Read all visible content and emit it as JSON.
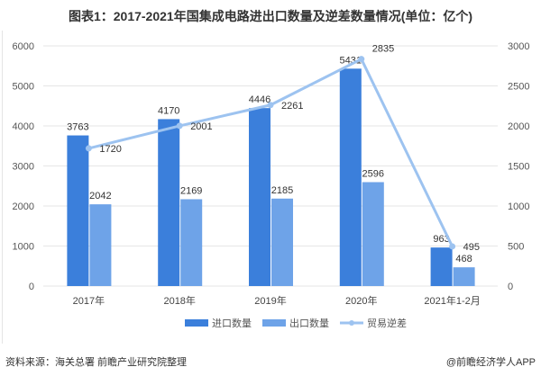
{
  "title": "图表1：2017-2021年国集成电路进出口数量及逆差数量情况(单位：亿个)",
  "source": "资料来源：海关总署 前瞻产业研究院整理",
  "credit": "@前瞻经济学人APP",
  "chart_data": {
    "type": "bar",
    "title": "图表1：2017-2021年国集成电路进出口数量及逆差数量情况(单位：亿个)",
    "categories": [
      "2017年",
      "2018年",
      "2019年",
      "2020年",
      "2021年1-2月"
    ],
    "series": [
      {
        "name": "进口数量",
        "type": "bar",
        "axis": "left",
        "color": "#3b7fdb",
        "values": [
          3763,
          4170,
          4446,
          5431,
          963
        ]
      },
      {
        "name": "出口数量",
        "type": "bar",
        "axis": "left",
        "color": "#6ea3e8",
        "values": [
          2042,
          2169,
          2185,
          2596,
          468
        ]
      },
      {
        "name": "贸易逆差",
        "type": "line",
        "axis": "right",
        "color": "#9dc3f0",
        "values": [
          1720,
          2001,
          2261,
          2835,
          495
        ]
      }
    ],
    "ylim_left": [
      0,
      6000
    ],
    "yticks_left": [
      0,
      1000,
      2000,
      3000,
      4000,
      5000,
      6000
    ],
    "ylim_right": [
      0,
      3000
    ],
    "yticks_right": [
      0,
      500,
      1000,
      1500,
      2000,
      2500,
      3000
    ],
    "grid": true,
    "legend": "bottom"
  }
}
